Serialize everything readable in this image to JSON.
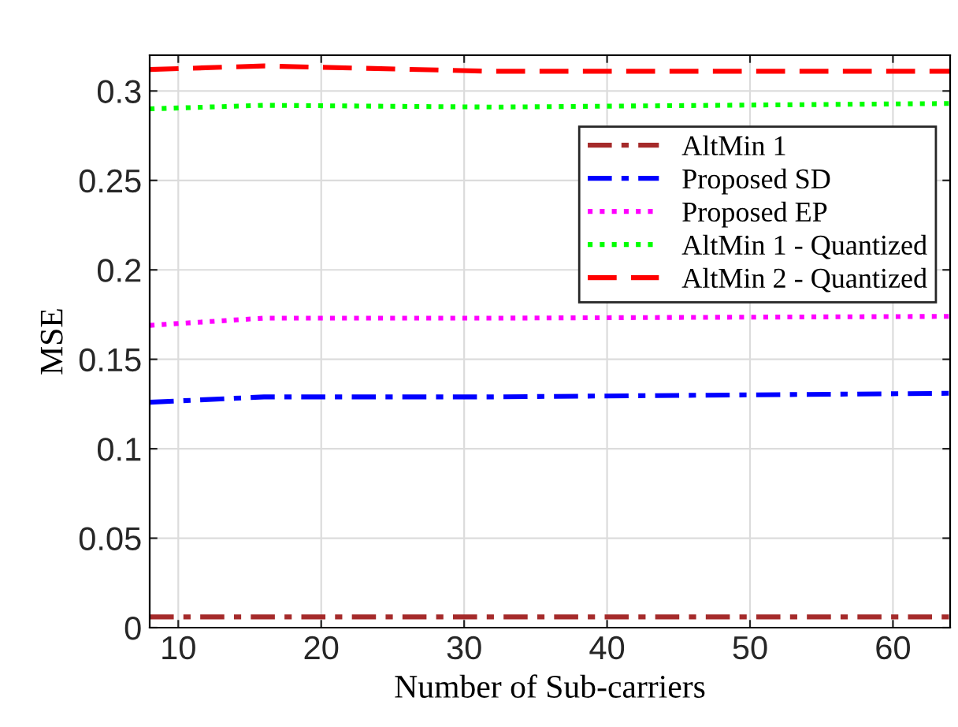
{
  "chart_data": {
    "type": "line",
    "xlabel": "Number of Sub-carriers",
    "ylabel": "MSE",
    "x": [
      8,
      16,
      32,
      64
    ],
    "series": [
      {
        "name": "AltMin 1",
        "color": "#a52a2a",
        "line_style": "dashdot",
        "values": [
          0.006,
          0.006,
          0.006,
          0.006
        ]
      },
      {
        "name": "Proposed SD",
        "color": "#0000ff",
        "line_style": "dashdot",
        "values": [
          0.126,
          0.129,
          0.129,
          0.131
        ]
      },
      {
        "name": "Proposed EP",
        "color": "#ff00ff",
        "line_style": "dotted",
        "values": [
          0.169,
          0.173,
          0.173,
          0.174
        ]
      },
      {
        "name": "AltMin 1 - Quantized",
        "color": "#00ff00",
        "line_style": "dotted",
        "values": [
          0.29,
          0.292,
          0.291,
          0.293
        ]
      },
      {
        "name": "AltMin 2 - Quantized",
        "color": "#ff0000",
        "line_style": "dashed",
        "values": [
          0.312,
          0.314,
          0.311,
          0.311
        ]
      }
    ],
    "xlim": [
      8,
      64
    ],
    "xticks": [
      10,
      20,
      30,
      40,
      50,
      60
    ],
    "ylim": [
      0,
      0.32
    ],
    "yticks": [
      0,
      0.05,
      0.1,
      0.15,
      0.2,
      0.25,
      0.3
    ],
    "grid": true,
    "legend": "top right",
    "marker": "none"
  }
}
